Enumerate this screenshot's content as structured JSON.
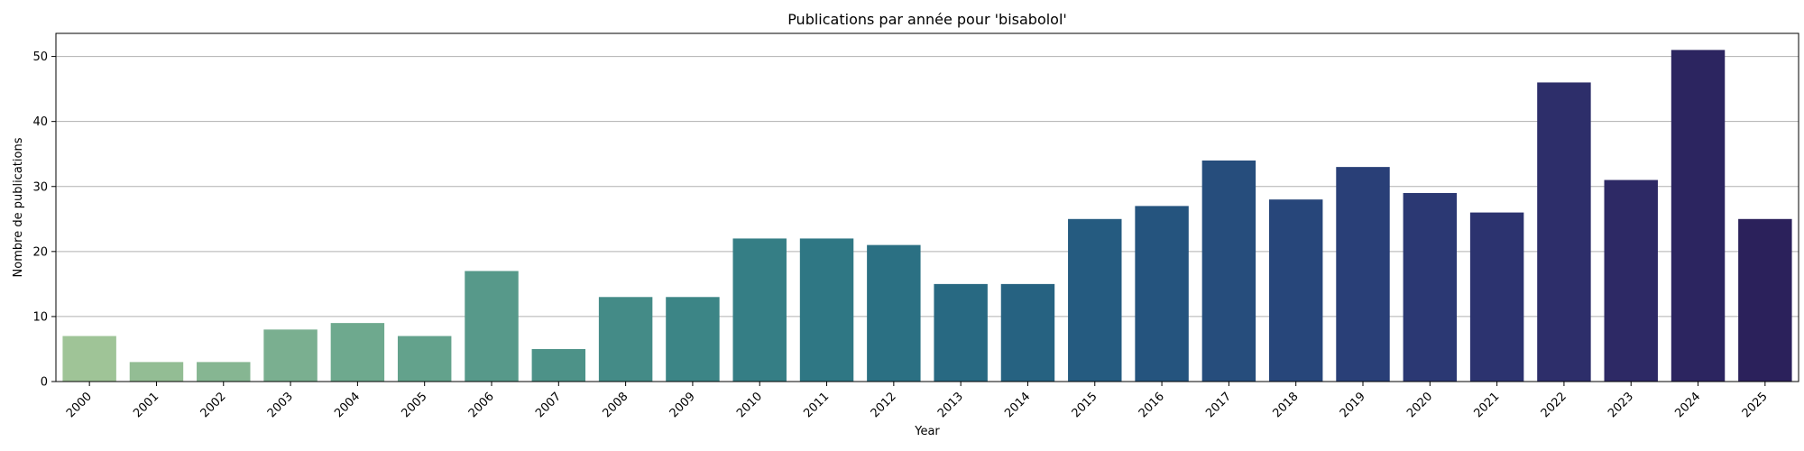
{
  "chart_data": {
    "type": "bar",
    "title": "Publications par année pour 'bisabolol'",
    "xlabel": "Year",
    "ylabel": "Nombre de publications",
    "categories": [
      "2000",
      "2001",
      "2002",
      "2003",
      "2004",
      "2005",
      "2006",
      "2007",
      "2008",
      "2009",
      "2010",
      "2011",
      "2012",
      "2013",
      "2014",
      "2015",
      "2016",
      "2017",
      "2018",
      "2019",
      "2020",
      "2021",
      "2022",
      "2023",
      "2024",
      "2025"
    ],
    "values": [
      7,
      3,
      3,
      8,
      9,
      7,
      17,
      5,
      13,
      13,
      22,
      22,
      21,
      15,
      15,
      25,
      27,
      34,
      28,
      33,
      29,
      26,
      46,
      31,
      51,
      25
    ],
    "ylim": [
      0,
      53.55
    ],
    "yticks": [
      0,
      10,
      20,
      30,
      40,
      50
    ],
    "grid": "y",
    "palette": "crest",
    "colors": [
      "#9fc497",
      "#93bd94",
      "#86b692",
      "#7aaf90",
      "#6ea98e",
      "#63a28c",
      "#57998a",
      "#4d9288",
      "#448b87",
      "#3c8586",
      "#357e85",
      "#2f7784",
      "#2b7083",
      "#286982",
      "#266281",
      "#255b80",
      "#25547e",
      "#264d7c",
      "#27467a",
      "#293f77",
      "#2b3873",
      "#2c336f",
      "#2d2e6a",
      "#2d2965",
      "#2c2560",
      "#2b215b"
    ]
  }
}
